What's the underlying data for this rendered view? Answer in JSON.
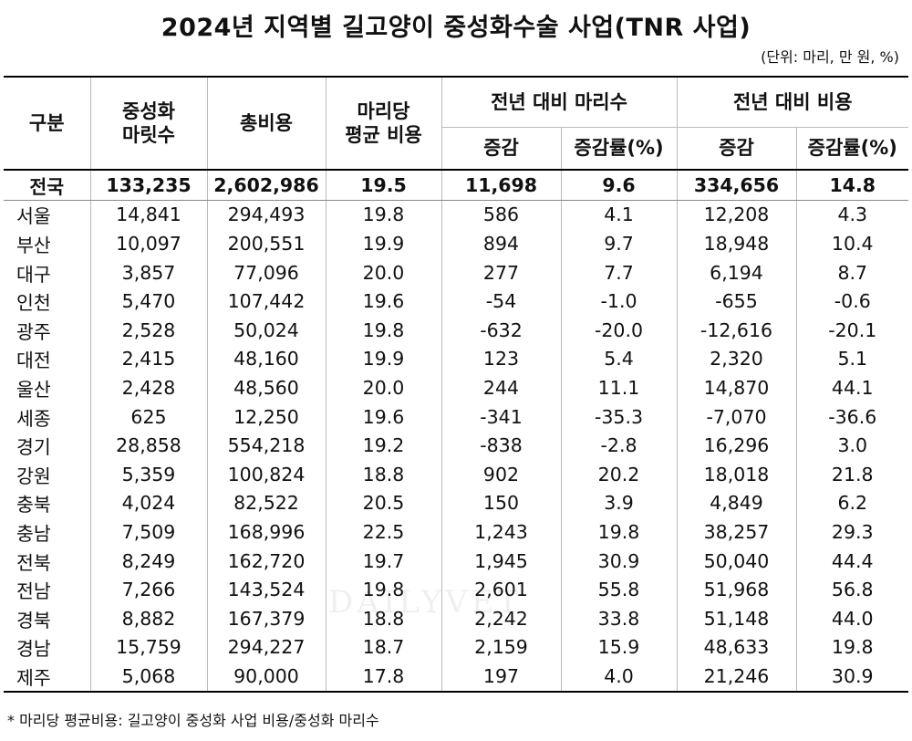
{
  "title": "2024년 지역별 길고양이 중성화수술 사업(TNR 사업)",
  "unit": "(단위: 마리, 만 원, %)",
  "headers": {
    "region": "구분",
    "count": "중성화\n마릿수",
    "total_cost": "총비용",
    "avg_cost": "마리당\n평균 비용",
    "yoy_count": "전년 대비 마리수",
    "yoy_cost": "전년 대비 비용",
    "change": "증감",
    "change_rate": "증감률(%)"
  },
  "rows": [
    {
      "region": "전국",
      "count": "133,235",
      "total_cost": "2,602,986",
      "avg": "19.5",
      "count_change": "11,698",
      "count_rate": "9.6",
      "cost_change": "334,656",
      "cost_rate": "14.8"
    },
    {
      "region": "서울",
      "count": "14,841",
      "total_cost": "294,493",
      "avg": "19.8",
      "count_change": "586",
      "count_rate": "4.1",
      "cost_change": "12,208",
      "cost_rate": "4.3"
    },
    {
      "region": "부산",
      "count": "10,097",
      "total_cost": "200,551",
      "avg": "19.9",
      "count_change": "894",
      "count_rate": "9.7",
      "cost_change": "18,948",
      "cost_rate": "10.4"
    },
    {
      "region": "대구",
      "count": "3,857",
      "total_cost": "77,096",
      "avg": "20.0",
      "count_change": "277",
      "count_rate": "7.7",
      "cost_change": "6,194",
      "cost_rate": "8.7"
    },
    {
      "region": "인천",
      "count": "5,470",
      "total_cost": "107,442",
      "avg": "19.6",
      "count_change": "-54",
      "count_rate": "-1.0",
      "cost_change": "-655",
      "cost_rate": "-0.6"
    },
    {
      "region": "광주",
      "count": "2,528",
      "total_cost": "50,024",
      "avg": "19.8",
      "count_change": "-632",
      "count_rate": "-20.0",
      "cost_change": "-12,616",
      "cost_rate": "-20.1"
    },
    {
      "region": "대전",
      "count": "2,415",
      "total_cost": "48,160",
      "avg": "19.9",
      "count_change": "123",
      "count_rate": "5.4",
      "cost_change": "2,320",
      "cost_rate": "5.1"
    },
    {
      "region": "울산",
      "count": "2,428",
      "total_cost": "48,560",
      "avg": "20.0",
      "count_change": "244",
      "count_rate": "11.1",
      "cost_change": "14,870",
      "cost_rate": "44.1"
    },
    {
      "region": "세종",
      "count": "625",
      "total_cost": "12,250",
      "avg": "19.6",
      "count_change": "-341",
      "count_rate": "-35.3",
      "cost_change": "-7,070",
      "cost_rate": "-36.6"
    },
    {
      "region": "경기",
      "count": "28,858",
      "total_cost": "554,218",
      "avg": "19.2",
      "count_change": "-838",
      "count_rate": "-2.8",
      "cost_change": "16,296",
      "cost_rate": "3.0"
    },
    {
      "region": "강원",
      "count": "5,359",
      "total_cost": "100,824",
      "avg": "18.8",
      "count_change": "902",
      "count_rate": "20.2",
      "cost_change": "18,018",
      "cost_rate": "21.8"
    },
    {
      "region": "충북",
      "count": "4,024",
      "total_cost": "82,522",
      "avg": "20.5",
      "count_change": "150",
      "count_rate": "3.9",
      "cost_change": "4,849",
      "cost_rate": "6.2"
    },
    {
      "region": "충남",
      "count": "7,509",
      "total_cost": "168,996",
      "avg": "22.5",
      "count_change": "1,243",
      "count_rate": "19.8",
      "cost_change": "38,257",
      "cost_rate": "29.3"
    },
    {
      "region": "전북",
      "count": "8,249",
      "total_cost": "162,720",
      "avg": "19.7",
      "count_change": "1,945",
      "count_rate": "30.9",
      "cost_change": "50,040",
      "cost_rate": "44.4"
    },
    {
      "region": "전남",
      "count": "7,266",
      "total_cost": "143,524",
      "avg": "19.8",
      "count_change": "2,601",
      "count_rate": "55.8",
      "cost_change": "51,968",
      "cost_rate": "56.8"
    },
    {
      "region": "경북",
      "count": "8,882",
      "total_cost": "167,379",
      "avg": "18.8",
      "count_change": "2,242",
      "count_rate": "33.8",
      "cost_change": "51,148",
      "cost_rate": "44.0"
    },
    {
      "region": "경남",
      "count": "15,759",
      "total_cost": "294,227",
      "avg": "18.7",
      "count_change": "2,159",
      "count_rate": "15.9",
      "cost_change": "48,633",
      "cost_rate": "19.8"
    },
    {
      "region": "제주",
      "count": "5,068",
      "total_cost": "90,000",
      "avg": "17.8",
      "count_change": "197",
      "count_rate": "4.0",
      "cost_change": "21,246",
      "cost_rate": "30.9"
    }
  ],
  "footnote": "* 마리당 평균비용: 길고양이 중성화 사업 비용/중성화 마리수",
  "watermark": "DAILYVET"
}
